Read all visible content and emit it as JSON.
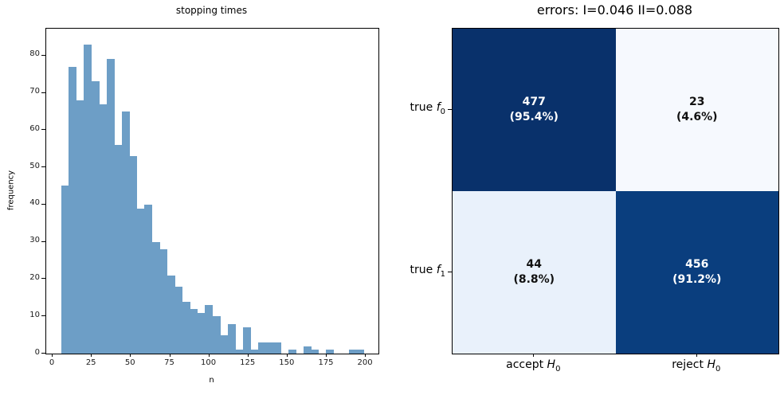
{
  "chart_data": [
    {
      "type": "bar",
      "subtype": "histogram",
      "title": "stopping times",
      "xlabel": "n",
      "ylabel": "frequency",
      "bar_color": "#6d9ec6",
      "xlim": [
        -3.6,
        208.6
      ],
      "ylim": [
        0,
        87.2
      ],
      "xticks": [
        0,
        25,
        50,
        75,
        100,
        125,
        150,
        175,
        200
      ],
      "yticks": [
        0,
        10,
        20,
        30,
        40,
        50,
        60,
        70,
        80
      ],
      "bin_width": 4.83,
      "bin_starts": [
        6,
        10.83,
        15.66,
        20.49,
        25.32,
        30.15,
        34.98,
        39.81,
        44.64,
        49.47,
        54.3,
        59.13,
        63.96,
        68.79,
        73.62,
        78.45,
        83.28,
        88.11,
        92.94,
        97.77,
        102.6,
        107.43,
        112.26,
        117.09,
        121.92,
        126.75,
        131.58,
        136.41,
        141.24,
        146.07,
        150.9,
        155.73,
        160.56,
        165.39,
        170.22,
        175.05,
        179.88,
        184.71,
        189.54,
        194.37
      ],
      "frequencies": [
        45,
        77,
        68,
        83,
        73,
        67,
        79,
        56,
        65,
        53,
        39,
        40,
        30,
        28,
        21,
        18,
        14,
        12,
        11,
        13,
        10,
        5,
        8,
        1,
        7,
        1,
        3,
        3,
        3,
        0,
        1,
        0,
        2,
        1,
        0,
        1,
        0,
        0,
        1,
        1
      ]
    },
    {
      "type": "heatmap",
      "subtype": "confusion-matrix",
      "title": "errors: I=0.046 II=0.088",
      "row_labels": [
        {
          "prefix": "true ",
          "symbol": "f",
          "subscript": "0"
        },
        {
          "prefix": "true ",
          "symbol": "f",
          "subscript": "1"
        }
      ],
      "col_labels": [
        {
          "prefix": "accept ",
          "symbol": "H",
          "subscript": "0"
        },
        {
          "prefix": "reject ",
          "symbol": "H",
          "subscript": "0"
        }
      ],
      "cells": [
        [
          {
            "value": "477",
            "percent": "(95.4%)",
            "bg": "#09316b",
            "fg": "#ffffff"
          },
          {
            "value": "23",
            "percent": "(4.6%)",
            "bg": "#f6f9fe",
            "fg": "#111111"
          }
        ],
        [
          {
            "value": "44",
            "percent": "(8.8%)",
            "bg": "#e9f1fb",
            "fg": "#111111"
          },
          {
            "value": "456",
            "percent": "(91.2%)",
            "bg": "#0a3e7e",
            "fg": "#ffffff"
          }
        ]
      ]
    }
  ]
}
